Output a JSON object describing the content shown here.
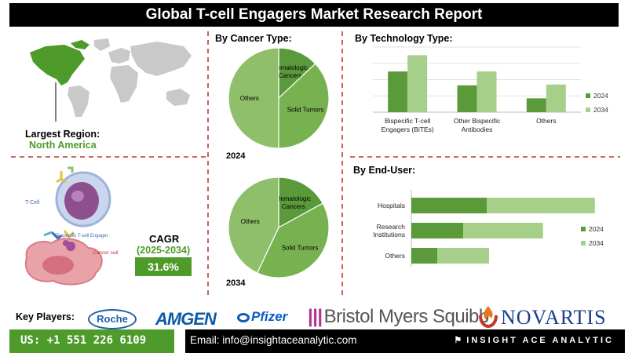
{
  "header": {
    "title": "Global T-cell Engagers Market Research Report"
  },
  "region": {
    "label": "Largest Region:",
    "value": "North America"
  },
  "illustration": {
    "tcell_label": "T-Cell",
    "engager_label": "Bi-specific T-cell Engager",
    "cancer_label": "Cancer cell"
  },
  "cagr": {
    "title": "CAGR",
    "period": "(2025-2034)",
    "value": "31.6%"
  },
  "sections": {
    "cancer_type": "By Cancer Type:",
    "technology_type": "By  Technology Type:",
    "end_user": "By End-User:"
  },
  "colors": {
    "dark_green": "#5b9a3a",
    "medium_green": "#78b14f",
    "light_green": "#a6d08a",
    "pie_light": "#8fbf6a",
    "accent": "#4e9a2a",
    "divider": "#c0392b"
  },
  "chart_data": [
    {
      "type": "pie",
      "id": "cancer-2024",
      "year_label": "2024",
      "labels": [
        "Hematologic Cancers",
        "Solid Tumors",
        "Others"
      ],
      "values": [
        13,
        37,
        50
      ]
    },
    {
      "type": "pie",
      "id": "cancer-2034",
      "year_label": "2034",
      "labels": [
        "Hematologic Cancers",
        "Solid Tumors",
        "Others"
      ],
      "values": [
        17,
        40,
        43
      ]
    },
    {
      "type": "bar",
      "id": "technology",
      "categories": [
        "Bispecific T-cell Engagers (BiTEs)",
        "Other Bispecific Antibodies",
        "Others"
      ],
      "series": [
        {
          "name": "2024",
          "values": [
            50,
            33,
            17
          ]
        },
        {
          "name": "2034",
          "values": [
            70,
            50,
            34
          ]
        }
      ],
      "legend": "right"
    },
    {
      "type": "bar",
      "orientation": "horizontal",
      "stacked": true,
      "id": "end-user",
      "categories": [
        "Hospitals",
        "Research Institutions",
        "Others"
      ],
      "series": [
        {
          "name": "2024",
          "values": [
            35,
            24,
            12
          ]
        },
        {
          "name": "2034",
          "values": [
            50,
            37,
            24
          ]
        }
      ],
      "legend": "right"
    }
  ],
  "key_players": {
    "label": "Key Players:",
    "companies": [
      "Roche",
      "AMGEN",
      "Pfizer",
      "Bristol Myers Squibb",
      "NOVARTIS"
    ]
  },
  "footer": {
    "phone": "US: +1 551 226 6109",
    "email": "Email: info@insightaceanalytic.com",
    "brand": "INSIGHT ACE ANALYTIC"
  }
}
